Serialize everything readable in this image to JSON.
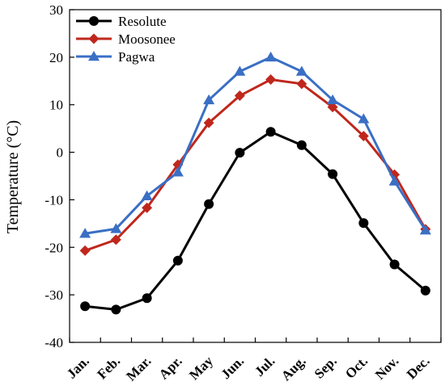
{
  "chart_data": {
    "type": "line",
    "title": "",
    "xlabel": "",
    "ylabel": "Temperature (°C)",
    "ylim": [
      -40,
      30
    ],
    "yticks": [
      -40,
      -30,
      -20,
      -10,
      0,
      10,
      20,
      30
    ],
    "categories": [
      "Jan.",
      "Feb.",
      "Mar.",
      "Apr.",
      "May",
      "Jun.",
      "Jul.",
      "Aug.",
      "Sep.",
      "Oct.",
      "Nov.",
      "Dec."
    ],
    "grid": false,
    "legend_position": "top-left",
    "series": [
      {
        "name": "Resolute",
        "color": "#000000",
        "marker": "circle",
        "values": [
          -32.4,
          -33.1,
          -30.7,
          -22.8,
          -10.9,
          -0.1,
          4.3,
          1.5,
          -4.6,
          -14.9,
          -23.6,
          -29.1
        ]
      },
      {
        "name": "Moosonee",
        "color": "#c0271c",
        "marker": "diamond",
        "values": [
          -20.7,
          -18.4,
          -11.7,
          -2.6,
          6.2,
          11.9,
          15.3,
          14.4,
          9.5,
          3.4,
          -4.7,
          -16.2
        ]
      },
      {
        "name": "Pagwa",
        "color": "#3a6fc4",
        "marker": "triangle",
        "values": [
          -17.1,
          -16.1,
          -9.2,
          -4.2,
          11.0,
          17.0,
          20.0,
          17.0,
          11.0,
          7.0,
          -6.1,
          -16.4
        ]
      }
    ]
  }
}
